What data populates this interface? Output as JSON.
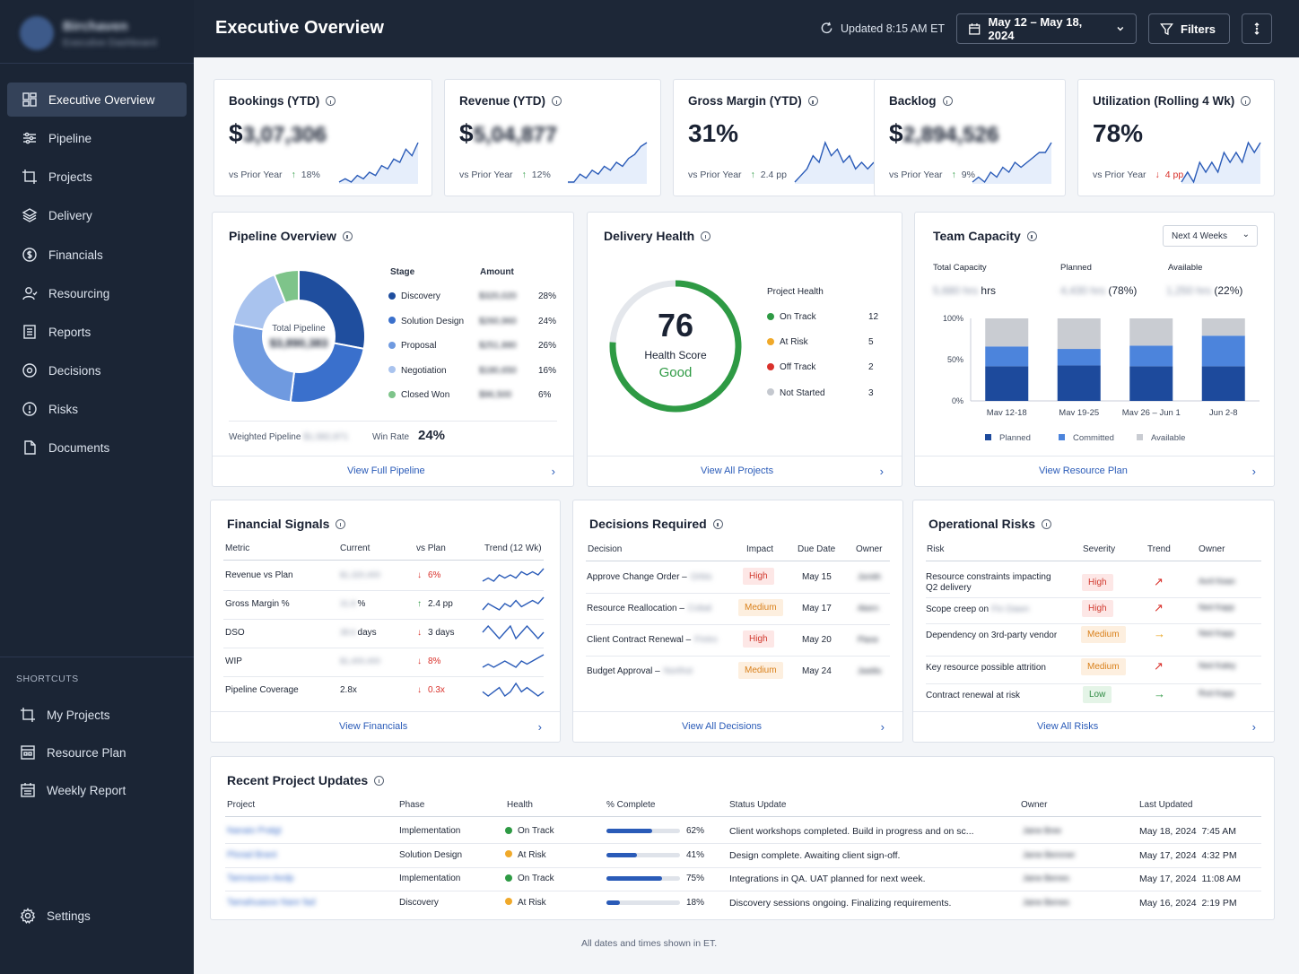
{
  "sidebar": {
    "brand_name": "Birchaven",
    "brand_sub": "Executive Dashboard",
    "nav": [
      {
        "label": "Executive Overview",
        "icon": "dashboard-icon"
      },
      {
        "label": "Pipeline",
        "icon": "sliders-icon"
      },
      {
        "label": "Projects",
        "icon": "frame-icon"
      },
      {
        "label": "Delivery",
        "icon": "layers-icon"
      },
      {
        "label": "Financials",
        "icon": "dollar-clock-icon"
      },
      {
        "label": "Resourcing",
        "icon": "user-icon"
      },
      {
        "label": "Reports",
        "icon": "report-icon"
      },
      {
        "label": "Decisions",
        "icon": "decision-icon"
      },
      {
        "label": "Risks",
        "icon": "alert-icon"
      },
      {
        "label": "Documents",
        "icon": "document-icon"
      }
    ],
    "shortcuts_heading": "SHORTCUTS",
    "shortcuts": [
      {
        "label": "My Projects"
      },
      {
        "label": "Resource Plan"
      },
      {
        "label": "Weekly Report"
      }
    ],
    "settings_label": "Settings"
  },
  "topbar": {
    "title": "Executive Overview",
    "updated": "Updated 8:15 AM ET",
    "date_range": "May 12 – May 18, 2024",
    "filters_label": "Filters"
  },
  "kpis": [
    {
      "title": "Bookings (YTD)",
      "prefix": "$",
      "value": "3,07,306",
      "vs_label": "vs Prior Year",
      "delta": "18%",
      "dir": "up",
      "trend": [
        2,
        3,
        2,
        4,
        3,
        5,
        4,
        7,
        6,
        9,
        8,
        12,
        10,
        14
      ]
    },
    {
      "title": "Revenue (YTD)",
      "prefix": "$",
      "value": "5,04,877",
      "vs_label": "vs Prior Year",
      "delta": "12%",
      "dir": "up",
      "trend": [
        2,
        2,
        4,
        3,
        5,
        4,
        6,
        5,
        7,
        6,
        8,
        9,
        11,
        12
      ]
    },
    {
      "title": "Gross Margin (YTD)",
      "prefix": "",
      "value": "31%",
      "vs_label": "vs Prior Year",
      "delta": "2.4 pp",
      "dir": "up",
      "trend": [
        5,
        6,
        7,
        9,
        8,
        11,
        9,
        10,
        8,
        9,
        7,
        8,
        7,
        8
      ]
    },
    {
      "title": "Backlog",
      "prefix": "$",
      "value": "2,894,526",
      "vs_label": "vs Prior Year",
      "delta": "9%",
      "dir": "up",
      "trend": [
        2,
        3,
        2,
        4,
        3,
        5,
        4,
        6,
        5,
        6,
        7,
        8,
        8,
        10
      ]
    },
    {
      "title": "Utilization (Rolling 4 Wk)",
      "prefix": "",
      "value": "78%",
      "vs_label": "vs Prior Year",
      "delta": "4 pp",
      "dir": "down",
      "trend": [
        5,
        6,
        5,
        7,
        6,
        7,
        6,
        8,
        7,
        8,
        7,
        9,
        8,
        9
      ]
    }
  ],
  "pipeline": {
    "title": "Pipeline Overview",
    "center_label": "Total Pipeline",
    "center_value": "$3,890,383",
    "col_stage": "Stage",
    "col_amount": "Amount",
    "stages": [
      {
        "name": "Discovery",
        "amount": "$320,020",
        "pct": "28%",
        "color": "#1f4e9e"
      },
      {
        "name": "Solution Design",
        "amount": "$260,960",
        "pct": "24%",
        "color": "#3a70cc"
      },
      {
        "name": "Proposal",
        "amount": "$251,880",
        "pct": "26%",
        "color": "#6f9ae0"
      },
      {
        "name": "Negotiation",
        "amount": "$180,650",
        "pct": "16%",
        "color": "#a9c3ee"
      },
      {
        "name": "Closed Won",
        "amount": "$96,500",
        "pct": "6%",
        "color": "#7ec48a"
      }
    ],
    "weighted_label": "Weighted Pipeline",
    "weighted_value": "$1,582,871",
    "win_rate_label": "Win Rate",
    "win_rate": "24%",
    "link": "View Full Pipeline"
  },
  "delivery": {
    "title": "Delivery Health",
    "score": "76",
    "score_label": "Health Score",
    "score_status": "Good",
    "score_pct": 76,
    "legend_title": "Project Health",
    "items": [
      {
        "name": "On Track",
        "count": "12",
        "color": "#2e9a44"
      },
      {
        "name": "At Risk",
        "count": "5",
        "color": "#f0a92a"
      },
      {
        "name": "Off Track",
        "count": "2",
        "color": "#d9312b"
      },
      {
        "name": "Not Started",
        "count": "3",
        "color": "#c4c8cf"
      }
    ],
    "link": "View All Projects"
  },
  "capacity": {
    "title": "Team Capacity",
    "period": "Next 4 Weeks",
    "total_label": "Total Capacity",
    "total_value": "5,680 hrs",
    "total_unit": "hrs",
    "planned_label": "Planned",
    "planned_value": "4,430 hrs",
    "planned_pct": "(78%)",
    "available_label": "Available",
    "available_value": "1,250 hrs",
    "available_pct": "(22%)",
    "chart_data": {
      "type": "bar",
      "stacked": true,
      "categories": [
        "May 12-18",
        "May 19-25",
        "May 26 – Jun 1",
        "Jun 2-8"
      ],
      "y_ticks": [
        "100%",
        "50%",
        "0%"
      ],
      "ylim": [
        0,
        100
      ],
      "series": [
        {
          "name": "Planned",
          "values": [
            42,
            43,
            42,
            42
          ],
          "color": "#1d4a9c"
        },
        {
          "name": "Committed",
          "values": [
            24,
            20,
            25,
            37
          ],
          "color": "#4c84dc"
        },
        {
          "name": "Available",
          "values": [
            34,
            37,
            33,
            21
          ],
          "color": "#c9ccd2"
        }
      ]
    },
    "link": "View Resource Plan"
  },
  "financial": {
    "title": "Financial Signals",
    "cols": [
      "Metric",
      "Current",
      "vs Plan",
      "Trend (12 Wk)"
    ],
    "rows": [
      {
        "metric": "Revenue vs Plan",
        "current": "$1,320,400",
        "current_unit": "",
        "delta": "6%",
        "dir": "down",
        "trend": [
          4,
          5,
          4,
          6,
          5,
          6,
          5,
          7,
          6,
          7,
          6,
          8
        ]
      },
      {
        "metric": "Gross Margin %",
        "current": "31.8",
        "current_unit": "%",
        "delta": "2.4 pp",
        "dir": "up",
        "trend": [
          4,
          6,
          5,
          4,
          6,
          5,
          7,
          5,
          6,
          7,
          6,
          8
        ]
      },
      {
        "metric": "DSO",
        "current": "38.6",
        "current_unit": "days",
        "delta": "3 days",
        "dir": "down",
        "trend": [
          6,
          7,
          6,
          5,
          6,
          7,
          5,
          6,
          7,
          6,
          5,
          6
        ]
      },
      {
        "metric": "WIP",
        "current": "$1,400,400",
        "current_unit": "",
        "delta": "8%",
        "dir": "down",
        "trend": [
          4,
          5,
          4,
          5,
          6,
          5,
          4,
          6,
          5,
          6,
          7,
          8
        ]
      },
      {
        "metric": "Pipeline Coverage",
        "current": "2.8x",
        "current_unit": "",
        "delta": "0.3x",
        "dir": "down",
        "trend": [
          6,
          5,
          6,
          7,
          5,
          6,
          8,
          6,
          7,
          6,
          5,
          6
        ]
      }
    ],
    "link": "View Financials"
  },
  "decisions": {
    "title": "Decisions Required",
    "cols": [
      "Decision",
      "Impact",
      "Due Date",
      "Owner"
    ],
    "rows": [
      {
        "decision": "Approve Change Order –",
        "ref": "Orbis",
        "impact": "High",
        "due": "May 15",
        "owner": "Jsmith"
      },
      {
        "decision": "Resource Reallocation –",
        "ref": "Cobal",
        "impact": "Medium",
        "due": "May 17",
        "owner": "Akern"
      },
      {
        "decision": "Client Contract Renewal –",
        "ref": "Fintro",
        "impact": "High",
        "due": "May 20",
        "owner": "Plane"
      },
      {
        "decision": "Budget Approval –",
        "ref": "Northst",
        "impact": "Medium",
        "due": "May 24",
        "owner": "Jwellis"
      }
    ],
    "link": "View All Decisions"
  },
  "risks": {
    "title": "Operational Risks",
    "cols": [
      "Risk",
      "Severity",
      "Trend",
      "Owner"
    ],
    "rows": [
      {
        "risk": "Resource constraints impacting Q2 delivery",
        "ref": "",
        "severity": "High",
        "trend": "↗",
        "trend_color": "#d9312b",
        "owner": "Avril Kean"
      },
      {
        "risk": "Scope creep on",
        "ref": "Fin Dawn",
        "severity": "High",
        "trend": "↗",
        "trend_color": "#d9312b",
        "owner": "Ned Kapp"
      },
      {
        "risk": "Dependency on 3rd-party vendor",
        "ref": "",
        "severity": "Medium",
        "trend": "→",
        "trend_color": "#e8a21a",
        "owner": "Ned Kapp"
      },
      {
        "risk": "Key resource possible attrition",
        "ref": "",
        "severity": "Medium",
        "trend": "↗",
        "trend_color": "#d9312b",
        "owner": "Ned Kaley"
      },
      {
        "risk": "Contract renewal at risk",
        "ref": "",
        "severity": "Low",
        "trend": "→",
        "trend_color": "#2e9a44",
        "owner": "Rod Kapp"
      }
    ],
    "link": "View All Risks"
  },
  "updates": {
    "title": "Recent Project Updates",
    "cols": [
      "Project",
      "Phase",
      "Health",
      "% Complete",
      "Status Update",
      "Owner",
      "Last Updated"
    ],
    "rows": [
      {
        "project": "Nanaio Pralgt",
        "phase": "Implementation",
        "health": "On Track",
        "health_color": "#2e9a44",
        "pct": 62,
        "pct_label": "62%",
        "status": "Client workshops completed. Build in progress and on sc...",
        "owner": "Jaine Bree",
        "updated": "May 18, 2024  7:45 AM"
      },
      {
        "project": "Plorad Brant",
        "phase": "Solution Design",
        "health": "At Risk",
        "health_color": "#f0a92a",
        "pct": 41,
        "pct_label": "41%",
        "status": "Design complete. Awaiting client sign-off.",
        "owner": "Jame Bemmer",
        "updated": "May 17, 2024  4:32 PM"
      },
      {
        "project": "Tamrasson Aedp",
        "phase": "Implementation",
        "health": "On Track",
        "health_color": "#2e9a44",
        "pct": 75,
        "pct_label": "75%",
        "status": "Integrations in QA. UAT planned for next week.",
        "owner": "Jaine Bemes",
        "updated": "May 17, 2024  11:08 AM"
      },
      {
        "project": "Tamahuasoo  Nanr fad",
        "phase": "Discovery",
        "health": "At Risk",
        "health_color": "#f0a92a",
        "pct": 18,
        "pct_label": "18%",
        "status": "Discovery sessions ongoing. Finalizing requirements.",
        "owner": "Jaine Bemes",
        "updated": "May 16, 2024  2:19 PM"
      }
    ]
  },
  "footer_note": "All dates and times shown in ET."
}
